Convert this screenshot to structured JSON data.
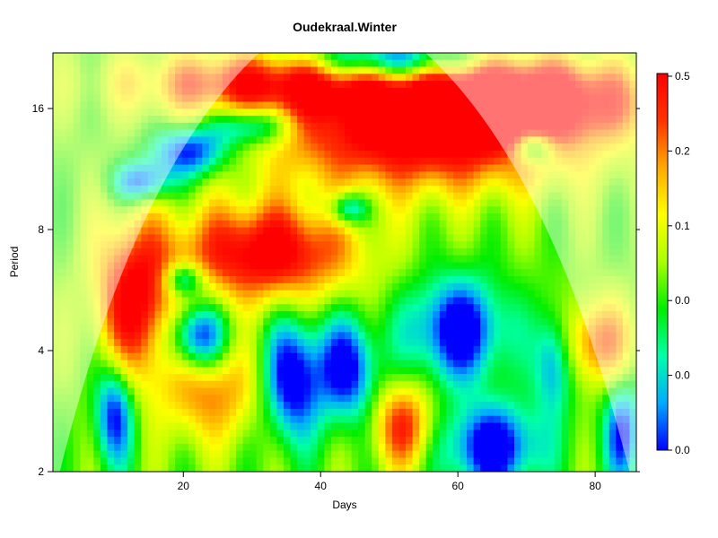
{
  "chart_data": {
    "type": "heatmap",
    "title": "Oudekraal.Winter",
    "xlabel": "Days",
    "ylabel": "Period",
    "xlim": [
      1,
      86
    ],
    "ylim": [
      2,
      22
    ],
    "y_log2": true,
    "x_ticks": [
      20,
      40,
      60,
      80
    ],
    "y_ticks": [
      2,
      4,
      8,
      16
    ],
    "colorbar": {
      "tick_labels": [
        "0.0",
        "0.0",
        "0.0",
        "0.1",
        "0.2",
        "0.5"
      ],
      "palette": [
        "#0000ff",
        "#00aaff",
        "#00ffaa",
        "#00ee00",
        "#aaff00",
        "#ffff00",
        "#ffaa00",
        "#ff3300",
        "#ff0000"
      ]
    },
    "hotspots": [
      {
        "x": 55,
        "period": 14,
        "value": 1.0,
        "sx": 16,
        "sy": 0.33
      },
      {
        "x": 70,
        "period": 17,
        "value": 0.9,
        "sx": 12,
        "sy": 0.22
      },
      {
        "x": 33,
        "period": 18.5,
        "value": 0.75,
        "sx": 14,
        "sy": 0.18
      },
      {
        "x": 32,
        "period": 7,
        "value": 0.95,
        "sx": 9,
        "sy": 0.28
      },
      {
        "x": 13,
        "period": 5.3,
        "value": 0.9,
        "sx": 4,
        "sy": 0.45
      },
      {
        "x": 80,
        "period": 4.2,
        "value": 0.6,
        "sx": 4,
        "sy": 0.25
      },
      {
        "x": 52,
        "period": 2.6,
        "value": 0.7,
        "sx": 3,
        "sy": 0.25
      },
      {
        "x": 24,
        "period": 3.2,
        "value": 0.55,
        "sx": 5,
        "sy": 0.3
      }
    ],
    "coldspots": [
      {
        "x": 50,
        "period": 21,
        "value": 0.9,
        "sx": 8,
        "sy": 0.12
      },
      {
        "x": 21,
        "period": 12.5,
        "value": 0.8,
        "sx": 4,
        "sy": 0.15
      },
      {
        "x": 30,
        "period": 14.5,
        "value": 0.7,
        "sx": 4,
        "sy": 0.12
      },
      {
        "x": 14,
        "period": 10.5,
        "value": 0.7,
        "sx": 3,
        "sy": 0.12
      },
      {
        "x": 44,
        "period": 9,
        "value": 0.7,
        "sx": 2,
        "sy": 0.1
      },
      {
        "x": 71,
        "period": 12.8,
        "value": 0.7,
        "sx": 2,
        "sy": 0.1
      },
      {
        "x": 22,
        "period": 4.3,
        "value": 0.9,
        "sx": 3,
        "sy": 0.2
      },
      {
        "x": 36,
        "period": 3.4,
        "value": 0.9,
        "sx": 3,
        "sy": 0.35
      },
      {
        "x": 44,
        "period": 3.6,
        "value": 0.8,
        "sx": 3,
        "sy": 0.3
      },
      {
        "x": 60,
        "period": 4.5,
        "value": 0.9,
        "sx": 5,
        "sy": 0.3
      },
      {
        "x": 65,
        "period": 2.3,
        "value": 0.9,
        "sx": 5,
        "sy": 0.25
      },
      {
        "x": 10,
        "period": 2.8,
        "value": 0.8,
        "sx": 2,
        "sy": 0.3
      },
      {
        "x": 20,
        "period": 6,
        "value": 0.7,
        "sx": 2,
        "sy": 0.1
      },
      {
        "x": 74,
        "period": 3.8,
        "value": 0.7,
        "sx": 2,
        "sy": 0.3
      },
      {
        "x": 84,
        "period": 2.5,
        "value": 0.7,
        "sx": 2,
        "sy": 0.3
      }
    ],
    "cone_of_influence": {
      "apex_x": 43,
      "left_base_x": 2,
      "right_base_x": 85,
      "shade": "rgba(255,255,255,0.45)"
    }
  }
}
